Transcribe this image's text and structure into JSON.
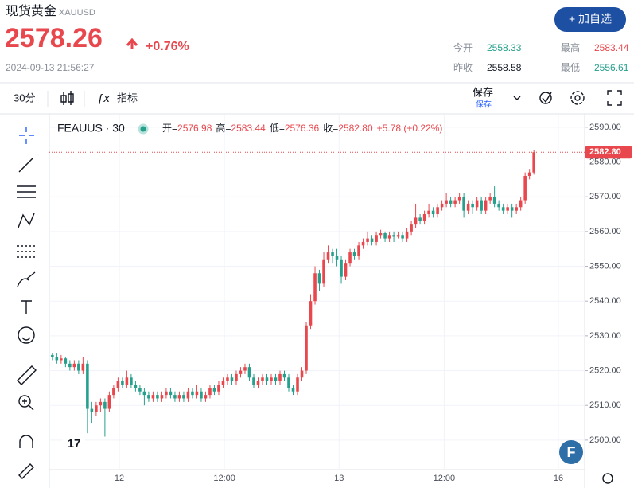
{
  "header": {
    "title": "现货黄金",
    "symbol": "XAUUSD",
    "price": 2578.26,
    "change": "+0.76%",
    "timestamp": "2024-09-13 21:56:27",
    "button": "+ 加自选",
    "stats": [
      {
        "label": "今开",
        "value": 2558.33
      },
      {
        "label": "最高",
        "value": 2583.44
      },
      {
        "label": "昨收",
        "value": 2558.58
      },
      {
        "label": "最低",
        "value": 2556.61
      }
    ]
  },
  "toolbar": {
    "interval": "30分",
    "indicators": "指标",
    "save": "保存",
    "save_sub": "保存"
  },
  "chart_data": {
    "type": "candlestick",
    "symbol": "FEAUUS · 30",
    "legend": [
      {
        "key": "开=",
        "value": "2576.98"
      },
      {
        "key": "高=",
        "value": "2583.44"
      },
      {
        "key": "低=",
        "value": "2576.36"
      },
      {
        "key": "收=",
        "value": "2582.80"
      },
      {
        "key": "",
        "value": "+5.78 (+0.22%)"
      }
    ],
    "last_label": "2582.80",
    "up_color": "#e8484d",
    "down_color": "#26a08c",
    "x": [
      0,
      1,
      2,
      3,
      4,
      5,
      6,
      7,
      8,
      9,
      10,
      11,
      12,
      13,
      14,
      15,
      16,
      17,
      18,
      19,
      20,
      21,
      22,
      23,
      24,
      25,
      26,
      27,
      28,
      29,
      30,
      31,
      32,
      33,
      34,
      35,
      36,
      37,
      38,
      39,
      40,
      41,
      42,
      43,
      44,
      45,
      46,
      47,
      48,
      49,
      50,
      51,
      52,
      53,
      54,
      55,
      56,
      57,
      58,
      59,
      60,
      61,
      62,
      63,
      64,
      65,
      66,
      67,
      68,
      69,
      70,
      71,
      72,
      73,
      74,
      75,
      76,
      77,
      78,
      79,
      80,
      81,
      82,
      83,
      84,
      85,
      86,
      87,
      88,
      89,
      90,
      91,
      92,
      93,
      94,
      95,
      96,
      97,
      98,
      99,
      100,
      101,
      102,
      103,
      104,
      105,
      106,
      107,
      108,
      109,
      110
    ],
    "ohlc": [
      [
        2524.5,
        2525,
        2523,
        2524
      ],
      [
        2524,
        2525,
        2522,
        2523
      ],
      [
        2523,
        2524.5,
        2522,
        2523.5
      ],
      [
        2523.5,
        2524,
        2521,
        2522
      ],
      [
        2522,
        2523,
        2520,
        2521
      ],
      [
        2521,
        2523,
        2520,
        2522
      ],
      [
        2522,
        2523,
        2519,
        2520
      ],
      [
        2520,
        2524,
        2519,
        2522
      ],
      [
        2522,
        2523,
        2502,
        2509
      ],
      [
        2509,
        2511,
        2505,
        2508
      ],
      [
        2508,
        2511,
        2507,
        2510
      ],
      [
        2510,
        2512,
        2508,
        2511
      ],
      [
        2511,
        2512,
        2501,
        2509
      ],
      [
        2509,
        2514,
        2508,
        2513
      ],
      [
        2513,
        2516,
        2512,
        2515
      ],
      [
        2515,
        2518,
        2514,
        2517
      ],
      [
        2517,
        2518,
        2515,
        2516
      ],
      [
        2516,
        2520,
        2515,
        2518
      ],
      [
        2518,
        2519,
        2515,
        2516
      ],
      [
        2516,
        2517,
        2514,
        2515
      ],
      [
        2515,
        2516,
        2513,
        2514
      ],
      [
        2514,
        2515,
        2510,
        2513
      ],
      [
        2513,
        2514,
        2511,
        2512
      ],
      [
        2512,
        2514,
        2511,
        2513
      ],
      [
        2513,
        2514,
        2511,
        2512
      ],
      [
        2512,
        2514,
        2511,
        2513
      ],
      [
        2513,
        2515,
        2512,
        2514
      ],
      [
        2514,
        2515,
        2512,
        2513
      ],
      [
        2513,
        2514,
        2511,
        2512
      ],
      [
        2512,
        2514,
        2511,
        2513
      ],
      [
        2513,
        2514,
        2511,
        2512
      ],
      [
        2512,
        2515,
        2511,
        2514
      ],
      [
        2514,
        2515,
        2512,
        2513
      ],
      [
        2513,
        2516,
        2512,
        2514
      ],
      [
        2514,
        2515,
        2511,
        2512
      ],
      [
        2512,
        2514,
        2511,
        2513
      ],
      [
        2513,
        2516,
        2512,
        2515
      ],
      [
        2515,
        2516,
        2513,
        2514
      ],
      [
        2514,
        2517,
        2513,
        2516
      ],
      [
        2516,
        2518,
        2515,
        2517
      ],
      [
        2517,
        2519,
        2516,
        2518
      ],
      [
        2518,
        2519,
        2516,
        2517
      ],
      [
        2517,
        2520,
        2516,
        2519
      ],
      [
        2519,
        2521,
        2518,
        2520
      ],
      [
        2520,
        2522,
        2519,
        2521
      ],
      [
        2521,
        2522,
        2517,
        2518
      ],
      [
        2518,
        2519,
        2515,
        2516
      ],
      [
        2516,
        2518,
        2515,
        2517
      ],
      [
        2517,
        2519,
        2516,
        2518
      ],
      [
        2518,
        2519,
        2516,
        2517
      ],
      [
        2517,
        2519,
        2516,
        2518
      ],
      [
        2518,
        2519,
        2516,
        2517
      ],
      [
        2517,
        2520,
        2516,
        2519
      ],
      [
        2519,
        2520,
        2517,
        2518
      ],
      [
        2518,
        2519,
        2514,
        2515
      ],
      [
        2515,
        2516,
        2513,
        2514
      ],
      [
        2514,
        2519,
        2513,
        2518
      ],
      [
        2518,
        2521,
        2517,
        2520
      ],
      [
        2520,
        2534,
        2519,
        2533
      ],
      [
        2533,
        2542,
        2532,
        2540
      ],
      [
        2540,
        2550,
        2539,
        2548
      ],
      [
        2548,
        2549,
        2543,
        2545
      ],
      [
        2545,
        2554,
        2544,
        2552
      ],
      [
        2552,
        2556,
        2551,
        2554
      ],
      [
        2554,
        2555,
        2551,
        2553
      ],
      [
        2553,
        2555,
        2550,
        2552
      ],
      [
        2552,
        2553,
        2545,
        2547
      ],
      [
        2547,
        2552,
        2546,
        2551
      ],
      [
        2551,
        2555,
        2550,
        2554
      ],
      [
        2554,
        2555,
        2552,
        2553
      ],
      [
        2553,
        2557,
        2552,
        2556
      ],
      [
        2556,
        2558,
        2555,
        2557
      ],
      [
        2557,
        2560,
        2556,
        2558
      ],
      [
        2558,
        2559,
        2556,
        2557
      ],
      [
        2557,
        2560,
        2556,
        2559
      ],
      [
        2559,
        2560.5,
        2558,
        2559.5
      ],
      [
        2559.5,
        2560,
        2557,
        2558
      ],
      [
        2558,
        2560,
        2557,
        2559
      ],
      [
        2559,
        2560,
        2557,
        2558.5
      ],
      [
        2558.5,
        2560,
        2558,
        2559
      ],
      [
        2559,
        2560,
        2557,
        2558
      ],
      [
        2558,
        2561,
        2557,
        2560
      ],
      [
        2560,
        2563,
        2559,
        2562
      ],
      [
        2562,
        2568,
        2561,
        2564
      ],
      [
        2564,
        2565,
        2562,
        2563
      ],
      [
        2563,
        2566,
        2562,
        2565
      ],
      [
        2565,
        2568,
        2564,
        2566
      ],
      [
        2566,
        2567,
        2564,
        2565
      ],
      [
        2565,
        2568,
        2564,
        2567
      ],
      [
        2567,
        2569,
        2566,
        2568
      ],
      [
        2568,
        2571,
        2567,
        2569
      ],
      [
        2569,
        2570,
        2567,
        2568
      ],
      [
        2568,
        2570,
        2567,
        2569
      ],
      [
        2569,
        2571,
        2568,
        2570
      ],
      [
        2570,
        2571,
        2564,
        2566
      ],
      [
        2566,
        2569,
        2565,
        2568
      ],
      [
        2568,
        2569,
        2565,
        2567
      ],
      [
        2567,
        2570,
        2566,
        2569
      ],
      [
        2569,
        2570,
        2565,
        2566
      ],
      [
        2566,
        2570,
        2565,
        2569
      ],
      [
        2569,
        2571,
        2568,
        2570
      ],
      [
        2570,
        2573,
        2567,
        2568
      ],
      [
        2568,
        2569,
        2566,
        2567
      ],
      [
        2567,
        2568,
        2565,
        2566
      ],
      [
        2566,
        2568,
        2565,
        2567
      ],
      [
        2567,
        2568,
        2564,
        2566
      ],
      [
        2566,
        2568,
        2565,
        2567
      ],
      [
        2567,
        2570,
        2566,
        2569
      ],
      [
        2569,
        2577,
        2568,
        2576
      ],
      [
        2576,
        2578,
        2575,
        2577
      ],
      [
        2576.98,
        2583.44,
        2576.36,
        2582.8
      ]
    ],
    "xlim": [
      -0.7,
      121.6
    ],
    "xticks": [
      {
        "value": 15.3,
        "label": "12"
      },
      {
        "value": 39.3,
        "label": "12:00"
      },
      {
        "value": 65.5,
        "label": "13"
      },
      {
        "value": 89.5,
        "label": "12:00"
      },
      {
        "value": 115.6,
        "label": "16"
      }
    ],
    "ylim": [
      2491.5,
      2593.4
    ],
    "yticks": [
      {
        "value": 2500,
        "label": "2500.00"
      },
      {
        "value": 2510,
        "label": "2510.00"
      },
      {
        "value": 2520,
        "label": "2520.00"
      },
      {
        "value": 2530,
        "label": "2530.00"
      },
      {
        "value": 2540,
        "label": "2540.00"
      },
      {
        "value": 2550,
        "label": "2550.00"
      },
      {
        "value": 2560,
        "label": "2560.00"
      },
      {
        "value": 2570,
        "label": "2570.00"
      },
      {
        "value": 2580,
        "label": "2580.00"
      },
      {
        "value": 2590,
        "label": "2590.00"
      }
    ],
    "grid": true
  }
}
